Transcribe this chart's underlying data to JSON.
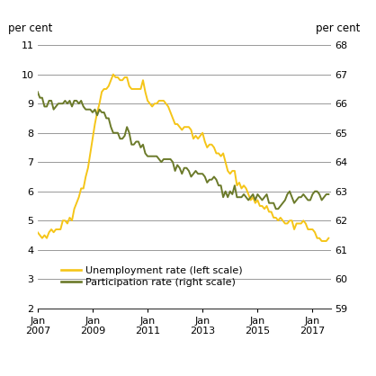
{
  "ylabel_left": "per cent",
  "ylabel_right": "per cent",
  "ylim_left": [
    2,
    11
  ],
  "ylim_right": [
    59,
    68
  ],
  "yticks_left": [
    2,
    3,
    4,
    5,
    6,
    7,
    8,
    9,
    10,
    11
  ],
  "yticks_right": [
    59,
    60,
    61,
    62,
    63,
    64,
    65,
    66,
    67,
    68
  ],
  "xtick_years": [
    2007,
    2009,
    2011,
    2013,
    2015,
    2017
  ],
  "xlim_start_year": 2007,
  "xlim_start_month": 1,
  "xlim_end_year": 2017,
  "xlim_end_month": 9,
  "unemp_color": "#F5C518",
  "part_color": "#6B7A2A",
  "legend_unemp": "Unemployment rate (left scale)",
  "legend_part": "Participation rate (right scale)",
  "grid_color": "#888888",
  "grid_linewidth": 0.6,
  "line_linewidth": 1.4,
  "unemp_data": [
    [
      2007,
      1,
      4.6
    ],
    [
      2007,
      2,
      4.5
    ],
    [
      2007,
      3,
      4.4
    ],
    [
      2007,
      4,
      4.5
    ],
    [
      2007,
      5,
      4.4
    ],
    [
      2007,
      6,
      4.6
    ],
    [
      2007,
      7,
      4.7
    ],
    [
      2007,
      8,
      4.6
    ],
    [
      2007,
      9,
      4.7
    ],
    [
      2007,
      10,
      4.7
    ],
    [
      2007,
      11,
      4.7
    ],
    [
      2007,
      12,
      5.0
    ],
    [
      2008,
      1,
      5.0
    ],
    [
      2008,
      2,
      4.9
    ],
    [
      2008,
      3,
      5.1
    ],
    [
      2008,
      4,
      5.0
    ],
    [
      2008,
      5,
      5.4
    ],
    [
      2008,
      6,
      5.6
    ],
    [
      2008,
      7,
      5.8
    ],
    [
      2008,
      8,
      6.1
    ],
    [
      2008,
      9,
      6.1
    ],
    [
      2008,
      10,
      6.5
    ],
    [
      2008,
      11,
      6.8
    ],
    [
      2008,
      12,
      7.3
    ],
    [
      2009,
      1,
      7.8
    ],
    [
      2009,
      2,
      8.3
    ],
    [
      2009,
      3,
      8.7
    ],
    [
      2009,
      4,
      9.0
    ],
    [
      2009,
      5,
      9.4
    ],
    [
      2009,
      6,
      9.5
    ],
    [
      2009,
      7,
      9.5
    ],
    [
      2009,
      8,
      9.6
    ],
    [
      2009,
      9,
      9.8
    ],
    [
      2009,
      10,
      10.0
    ],
    [
      2009,
      11,
      9.9
    ],
    [
      2009,
      12,
      9.9
    ],
    [
      2010,
      1,
      9.8
    ],
    [
      2010,
      2,
      9.8
    ],
    [
      2010,
      3,
      9.9
    ],
    [
      2010,
      4,
      9.9
    ],
    [
      2010,
      5,
      9.6
    ],
    [
      2010,
      6,
      9.5
    ],
    [
      2010,
      7,
      9.5
    ],
    [
      2010,
      8,
      9.5
    ],
    [
      2010,
      9,
      9.5
    ],
    [
      2010,
      10,
      9.5
    ],
    [
      2010,
      11,
      9.8
    ],
    [
      2010,
      12,
      9.4
    ],
    [
      2011,
      1,
      9.1
    ],
    [
      2011,
      2,
      9.0
    ],
    [
      2011,
      3,
      8.9
    ],
    [
      2011,
      4,
      9.0
    ],
    [
      2011,
      5,
      9.0
    ],
    [
      2011,
      6,
      9.1
    ],
    [
      2011,
      7,
      9.1
    ],
    [
      2011,
      8,
      9.1
    ],
    [
      2011,
      9,
      9.0
    ],
    [
      2011,
      10,
      8.9
    ],
    [
      2011,
      11,
      8.7
    ],
    [
      2011,
      12,
      8.5
    ],
    [
      2012,
      1,
      8.3
    ],
    [
      2012,
      2,
      8.3
    ],
    [
      2012,
      3,
      8.2
    ],
    [
      2012,
      4,
      8.1
    ],
    [
      2012,
      5,
      8.2
    ],
    [
      2012,
      6,
      8.2
    ],
    [
      2012,
      7,
      8.2
    ],
    [
      2012,
      8,
      8.1
    ],
    [
      2012,
      9,
      7.8
    ],
    [
      2012,
      10,
      7.9
    ],
    [
      2012,
      11,
      7.8
    ],
    [
      2012,
      12,
      7.9
    ],
    [
      2013,
      1,
      8.0
    ],
    [
      2013,
      2,
      7.7
    ],
    [
      2013,
      3,
      7.5
    ],
    [
      2013,
      4,
      7.6
    ],
    [
      2013,
      5,
      7.6
    ],
    [
      2013,
      6,
      7.5
    ],
    [
      2013,
      7,
      7.3
    ],
    [
      2013,
      8,
      7.3
    ],
    [
      2013,
      9,
      7.2
    ],
    [
      2013,
      10,
      7.3
    ],
    [
      2013,
      11,
      7.0
    ],
    [
      2013,
      12,
      6.7
    ],
    [
      2014,
      1,
      6.6
    ],
    [
      2014,
      2,
      6.7
    ],
    [
      2014,
      3,
      6.7
    ],
    [
      2014,
      4,
      6.2
    ],
    [
      2014,
      5,
      6.3
    ],
    [
      2014,
      6,
      6.1
    ],
    [
      2014,
      7,
      6.2
    ],
    [
      2014,
      8,
      6.1
    ],
    [
      2014,
      9,
      5.9
    ],
    [
      2014,
      10,
      5.7
    ],
    [
      2014,
      11,
      5.8
    ],
    [
      2014,
      12,
      5.6
    ],
    [
      2015,
      1,
      5.7
    ],
    [
      2015,
      2,
      5.5
    ],
    [
      2015,
      3,
      5.5
    ],
    [
      2015,
      4,
      5.4
    ],
    [
      2015,
      5,
      5.5
    ],
    [
      2015,
      6,
      5.3
    ],
    [
      2015,
      7,
      5.3
    ],
    [
      2015,
      8,
      5.1
    ],
    [
      2015,
      9,
      5.1
    ],
    [
      2015,
      10,
      5.0
    ],
    [
      2015,
      11,
      5.1
    ],
    [
      2015,
      12,
      5.0
    ],
    [
      2016,
      1,
      4.9
    ],
    [
      2016,
      2,
      4.9
    ],
    [
      2016,
      3,
      5.0
    ],
    [
      2016,
      4,
      5.0
    ],
    [
      2016,
      5,
      4.7
    ],
    [
      2016,
      6,
      4.9
    ],
    [
      2016,
      7,
      4.9
    ],
    [
      2016,
      8,
      4.9
    ],
    [
      2016,
      9,
      5.0
    ],
    [
      2016,
      10,
      4.9
    ],
    [
      2016,
      11,
      4.7
    ],
    [
      2016,
      12,
      4.7
    ],
    [
      2017,
      1,
      4.7
    ],
    [
      2017,
      2,
      4.6
    ],
    [
      2017,
      3,
      4.4
    ],
    [
      2017,
      4,
      4.4
    ],
    [
      2017,
      5,
      4.3
    ],
    [
      2017,
      6,
      4.3
    ],
    [
      2017,
      7,
      4.3
    ],
    [
      2017,
      8,
      4.4
    ]
  ],
  "part_data": [
    [
      2007,
      1,
      66.4
    ],
    [
      2007,
      2,
      66.2
    ],
    [
      2007,
      3,
      66.2
    ],
    [
      2007,
      4,
      65.9
    ],
    [
      2007,
      5,
      65.9
    ],
    [
      2007,
      6,
      66.1
    ],
    [
      2007,
      7,
      66.1
    ],
    [
      2007,
      8,
      65.8
    ],
    [
      2007,
      9,
      65.9
    ],
    [
      2007,
      10,
      66.0
    ],
    [
      2007,
      11,
      66.0
    ],
    [
      2007,
      12,
      66.0
    ],
    [
      2008,
      1,
      66.1
    ],
    [
      2008,
      2,
      66.0
    ],
    [
      2008,
      3,
      66.1
    ],
    [
      2008,
      4,
      65.9
    ],
    [
      2008,
      5,
      66.1
    ],
    [
      2008,
      6,
      66.1
    ],
    [
      2008,
      7,
      66.0
    ],
    [
      2008,
      8,
      66.1
    ],
    [
      2008,
      9,
      65.9
    ],
    [
      2008,
      10,
      65.8
    ],
    [
      2008,
      11,
      65.8
    ],
    [
      2008,
      12,
      65.8
    ],
    [
      2009,
      1,
      65.7
    ],
    [
      2009,
      2,
      65.8
    ],
    [
      2009,
      3,
      65.6
    ],
    [
      2009,
      4,
      65.8
    ],
    [
      2009,
      5,
      65.7
    ],
    [
      2009,
      6,
      65.7
    ],
    [
      2009,
      7,
      65.5
    ],
    [
      2009,
      8,
      65.5
    ],
    [
      2009,
      9,
      65.2
    ],
    [
      2009,
      10,
      65.0
    ],
    [
      2009,
      11,
      65.0
    ],
    [
      2009,
      12,
      65.0
    ],
    [
      2010,
      1,
      64.8
    ],
    [
      2010,
      2,
      64.8
    ],
    [
      2010,
      3,
      64.9
    ],
    [
      2010,
      4,
      65.2
    ],
    [
      2010,
      5,
      65.0
    ],
    [
      2010,
      6,
      64.6
    ],
    [
      2010,
      7,
      64.6
    ],
    [
      2010,
      8,
      64.7
    ],
    [
      2010,
      9,
      64.7
    ],
    [
      2010,
      10,
      64.5
    ],
    [
      2010,
      11,
      64.6
    ],
    [
      2010,
      12,
      64.3
    ],
    [
      2011,
      1,
      64.2
    ],
    [
      2011,
      2,
      64.2
    ],
    [
      2011,
      3,
      64.2
    ],
    [
      2011,
      4,
      64.2
    ],
    [
      2011,
      5,
      64.2
    ],
    [
      2011,
      6,
      64.1
    ],
    [
      2011,
      7,
      64.0
    ],
    [
      2011,
      8,
      64.1
    ],
    [
      2011,
      9,
      64.1
    ],
    [
      2011,
      10,
      64.1
    ],
    [
      2011,
      11,
      64.1
    ],
    [
      2011,
      12,
      64.0
    ],
    [
      2012,
      1,
      63.7
    ],
    [
      2012,
      2,
      63.9
    ],
    [
      2012,
      3,
      63.8
    ],
    [
      2012,
      4,
      63.6
    ],
    [
      2012,
      5,
      63.8
    ],
    [
      2012,
      6,
      63.8
    ],
    [
      2012,
      7,
      63.7
    ],
    [
      2012,
      8,
      63.5
    ],
    [
      2012,
      9,
      63.6
    ],
    [
      2012,
      10,
      63.7
    ],
    [
      2012,
      11,
      63.6
    ],
    [
      2012,
      12,
      63.6
    ],
    [
      2013,
      1,
      63.6
    ],
    [
      2013,
      2,
      63.5
    ],
    [
      2013,
      3,
      63.3
    ],
    [
      2013,
      4,
      63.4
    ],
    [
      2013,
      5,
      63.4
    ],
    [
      2013,
      6,
      63.5
    ],
    [
      2013,
      7,
      63.4
    ],
    [
      2013,
      8,
      63.2
    ],
    [
      2013,
      9,
      63.2
    ],
    [
      2013,
      10,
      62.8
    ],
    [
      2013,
      11,
      63.0
    ],
    [
      2013,
      12,
      62.8
    ],
    [
      2014,
      1,
      63.0
    ],
    [
      2014,
      2,
      62.9
    ],
    [
      2014,
      3,
      63.2
    ],
    [
      2014,
      4,
      62.8
    ],
    [
      2014,
      5,
      62.8
    ],
    [
      2014,
      6,
      62.8
    ],
    [
      2014,
      7,
      62.9
    ],
    [
      2014,
      8,
      62.8
    ],
    [
      2014,
      9,
      62.7
    ],
    [
      2014,
      10,
      62.8
    ],
    [
      2014,
      11,
      62.9
    ],
    [
      2014,
      12,
      62.7
    ],
    [
      2015,
      1,
      62.9
    ],
    [
      2015,
      2,
      62.8
    ],
    [
      2015,
      3,
      62.7
    ],
    [
      2015,
      4,
      62.8
    ],
    [
      2015,
      5,
      62.9
    ],
    [
      2015,
      6,
      62.6
    ],
    [
      2015,
      7,
      62.6
    ],
    [
      2015,
      8,
      62.6
    ],
    [
      2015,
      9,
      62.4
    ],
    [
      2015,
      10,
      62.4
    ],
    [
      2015,
      11,
      62.5
    ],
    [
      2015,
      12,
      62.6
    ],
    [
      2016,
      1,
      62.7
    ],
    [
      2016,
      2,
      62.9
    ],
    [
      2016,
      3,
      63.0
    ],
    [
      2016,
      4,
      62.8
    ],
    [
      2016,
      5,
      62.6
    ],
    [
      2016,
      6,
      62.7
    ],
    [
      2016,
      7,
      62.8
    ],
    [
      2016,
      8,
      62.8
    ],
    [
      2016,
      9,
      62.9
    ],
    [
      2016,
      10,
      62.8
    ],
    [
      2016,
      11,
      62.7
    ],
    [
      2016,
      12,
      62.7
    ],
    [
      2017,
      1,
      62.9
    ],
    [
      2017,
      2,
      63.0
    ],
    [
      2017,
      3,
      63.0
    ],
    [
      2017,
      4,
      62.9
    ],
    [
      2017,
      5,
      62.7
    ],
    [
      2017,
      6,
      62.8
    ],
    [
      2017,
      7,
      62.9
    ],
    [
      2017,
      8,
      62.9
    ]
  ]
}
